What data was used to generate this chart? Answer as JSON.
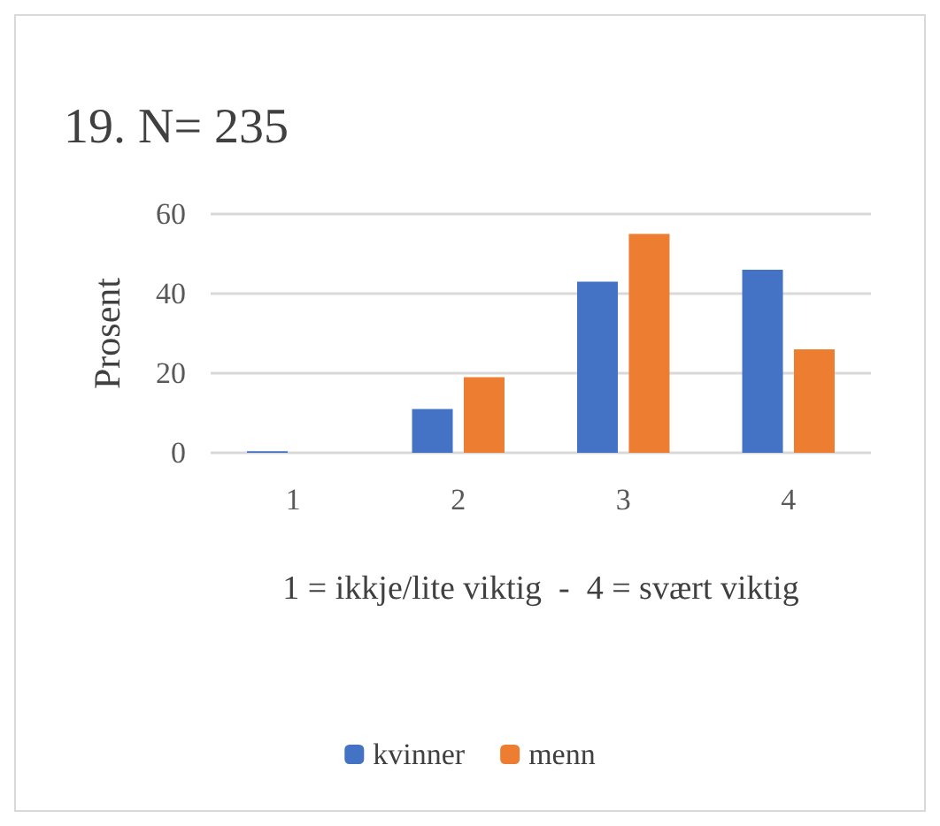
{
  "chart_data": {
    "type": "bar",
    "title": "19. N= 235",
    "xlabel": "1 = ikkje/lite viktig  -  4 = svært viktig",
    "ylabel": "Prosent",
    "categories": [
      "1",
      "2",
      "3",
      "4"
    ],
    "series": [
      {
        "name": "kvinner",
        "color": "#4472c4",
        "values": [
          0.4,
          11,
          43,
          46
        ]
      },
      {
        "name": "menn",
        "color": "#ed7d31",
        "values": [
          0,
          19,
          55,
          26
        ]
      }
    ],
    "ylim": [
      0,
      60
    ],
    "yticks": [
      0,
      20,
      40,
      60
    ],
    "grid": "y",
    "legend": "bottom"
  }
}
